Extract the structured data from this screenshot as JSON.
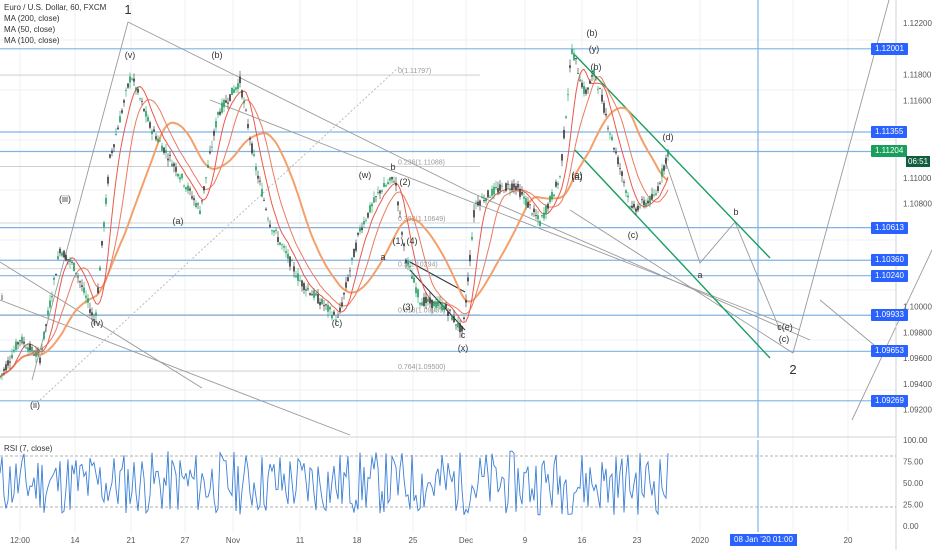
{
  "legend": {
    "symbol": "Euro / U.S. Dollar, 60, FXCM",
    "ma200": "MA (200, close)",
    "ma50": "MA (50, close)",
    "ma100": "MA (100, close)"
  },
  "rsi_title": "RSI (7, close)",
  "current_price": "1.11204",
  "countdown": "06:51",
  "cursor_date": "08 Jan '20  01:00",
  "colors": {
    "price_line_blue": "#5b9bd5",
    "trend_green": "#1a9e5c",
    "ma_red": "#e8584b",
    "ma_orange": "#f4a06b",
    "rsi_blue": "#3b7fd6",
    "current_price_green": "#1a9e5c"
  },
  "chart_data": {
    "type": "line",
    "symbol": "Euro / U.S. Dollar",
    "y_ticks": [
      "1.12200",
      "1.11800",
      "1.11600",
      "1.11000",
      "1.10800",
      "1.10000",
      "1.09800",
      "1.09600",
      "1.09400",
      "1.09200"
    ],
    "price_levels": [
      "1.12001",
      "1.11355",
      "1.11204",
      "1.10613",
      "1.10360",
      "1.10240",
      "1.09933",
      "1.09653",
      "1.09269"
    ],
    "x_ticks": [
      "12:00",
      "14",
      "21",
      "27",
      "Nov",
      "11",
      "18",
      "25",
      "Dec",
      "9",
      "16",
      "23",
      "2020",
      "13",
      "20"
    ],
    "fib_labels": [
      "0(1.11797)",
      "0.236(1.11088)",
      "0.382(1.10649)",
      "0.5(1.10294)",
      "0.618(1.09939)",
      "0.764(1.09500)"
    ],
    "wave_labels": [
      "1",
      "(v)",
      "(b)",
      "(iii)",
      "(a)",
      "(iv)",
      "(ii)",
      "i",
      "(w)",
      "b",
      "(2)",
      "(1)",
      "(4)",
      "(3)",
      "a",
      "(c)",
      "(a)",
      "c",
      "(x)",
      "(b)",
      "(y)",
      "(b)",
      "(a)",
      "(d)",
      "(c)",
      "b",
      "a",
      "c(e)",
      "(c)",
      "2"
    ],
    "rsi": {
      "ticks": [
        "100.00",
        "75.00",
        "50.00",
        "25.00",
        "0.00"
      ],
      "upper": 80,
      "lower": 20
    }
  }
}
